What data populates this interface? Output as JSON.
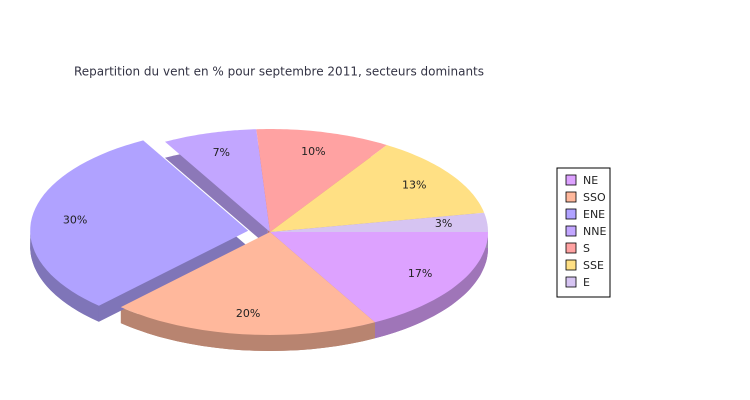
{
  "chart_data": {
    "type": "pie",
    "title": "Repartition du vent en % pour septembre 2011, secteurs dominants",
    "categories": [
      "NE",
      "SSO",
      "ENE",
      "NNE",
      "S",
      "SSE",
      "E"
    ],
    "values": [
      17,
      20,
      30,
      7,
      10,
      13,
      3
    ],
    "value_labels": [
      "17%",
      "20%",
      "30%",
      "7%",
      "10%",
      "13%",
      "3%"
    ],
    "colors": [
      "#dda2ff",
      "#ffb89c",
      "#b0a2ff",
      "#c2a6ff",
      "#ffa2a2",
      "#ffe084",
      "#d6c4f2"
    ],
    "legend": "right"
  }
}
